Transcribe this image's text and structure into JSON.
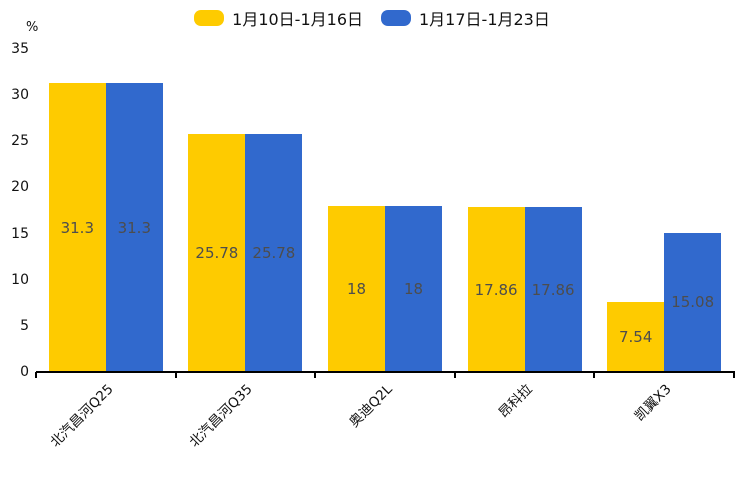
{
  "chart_data": {
    "type": "bar",
    "title": "",
    "unit_label": "%",
    "categories": [
      "北汽昌河Q25",
      "北汽昌河Q35",
      "奥迪Q2L",
      "昂科拉",
      "凯翼X3"
    ],
    "series": [
      {
        "name": "1月10日-1月16日",
        "color": "#fecb00",
        "values": [
          31.3,
          25.78,
          18,
          17.86,
          7.54
        ]
      },
      {
        "name": "1月17日-1月23日",
        "color": "#3169cd",
        "values": [
          31.3,
          25.78,
          18,
          17.86,
          15.08
        ]
      }
    ],
    "ylim": [
      0,
      35
    ],
    "yticks": [
      0,
      5,
      10,
      15,
      20,
      25,
      30,
      35
    ],
    "grid": false,
    "legend_position": "top",
    "bar_value_labels_shown": true
  },
  "colors": {
    "bar_label_text": "#4d4d4d",
    "axis_text": "#111111",
    "axis_line": "#000000",
    "background": "#ffffff"
  }
}
